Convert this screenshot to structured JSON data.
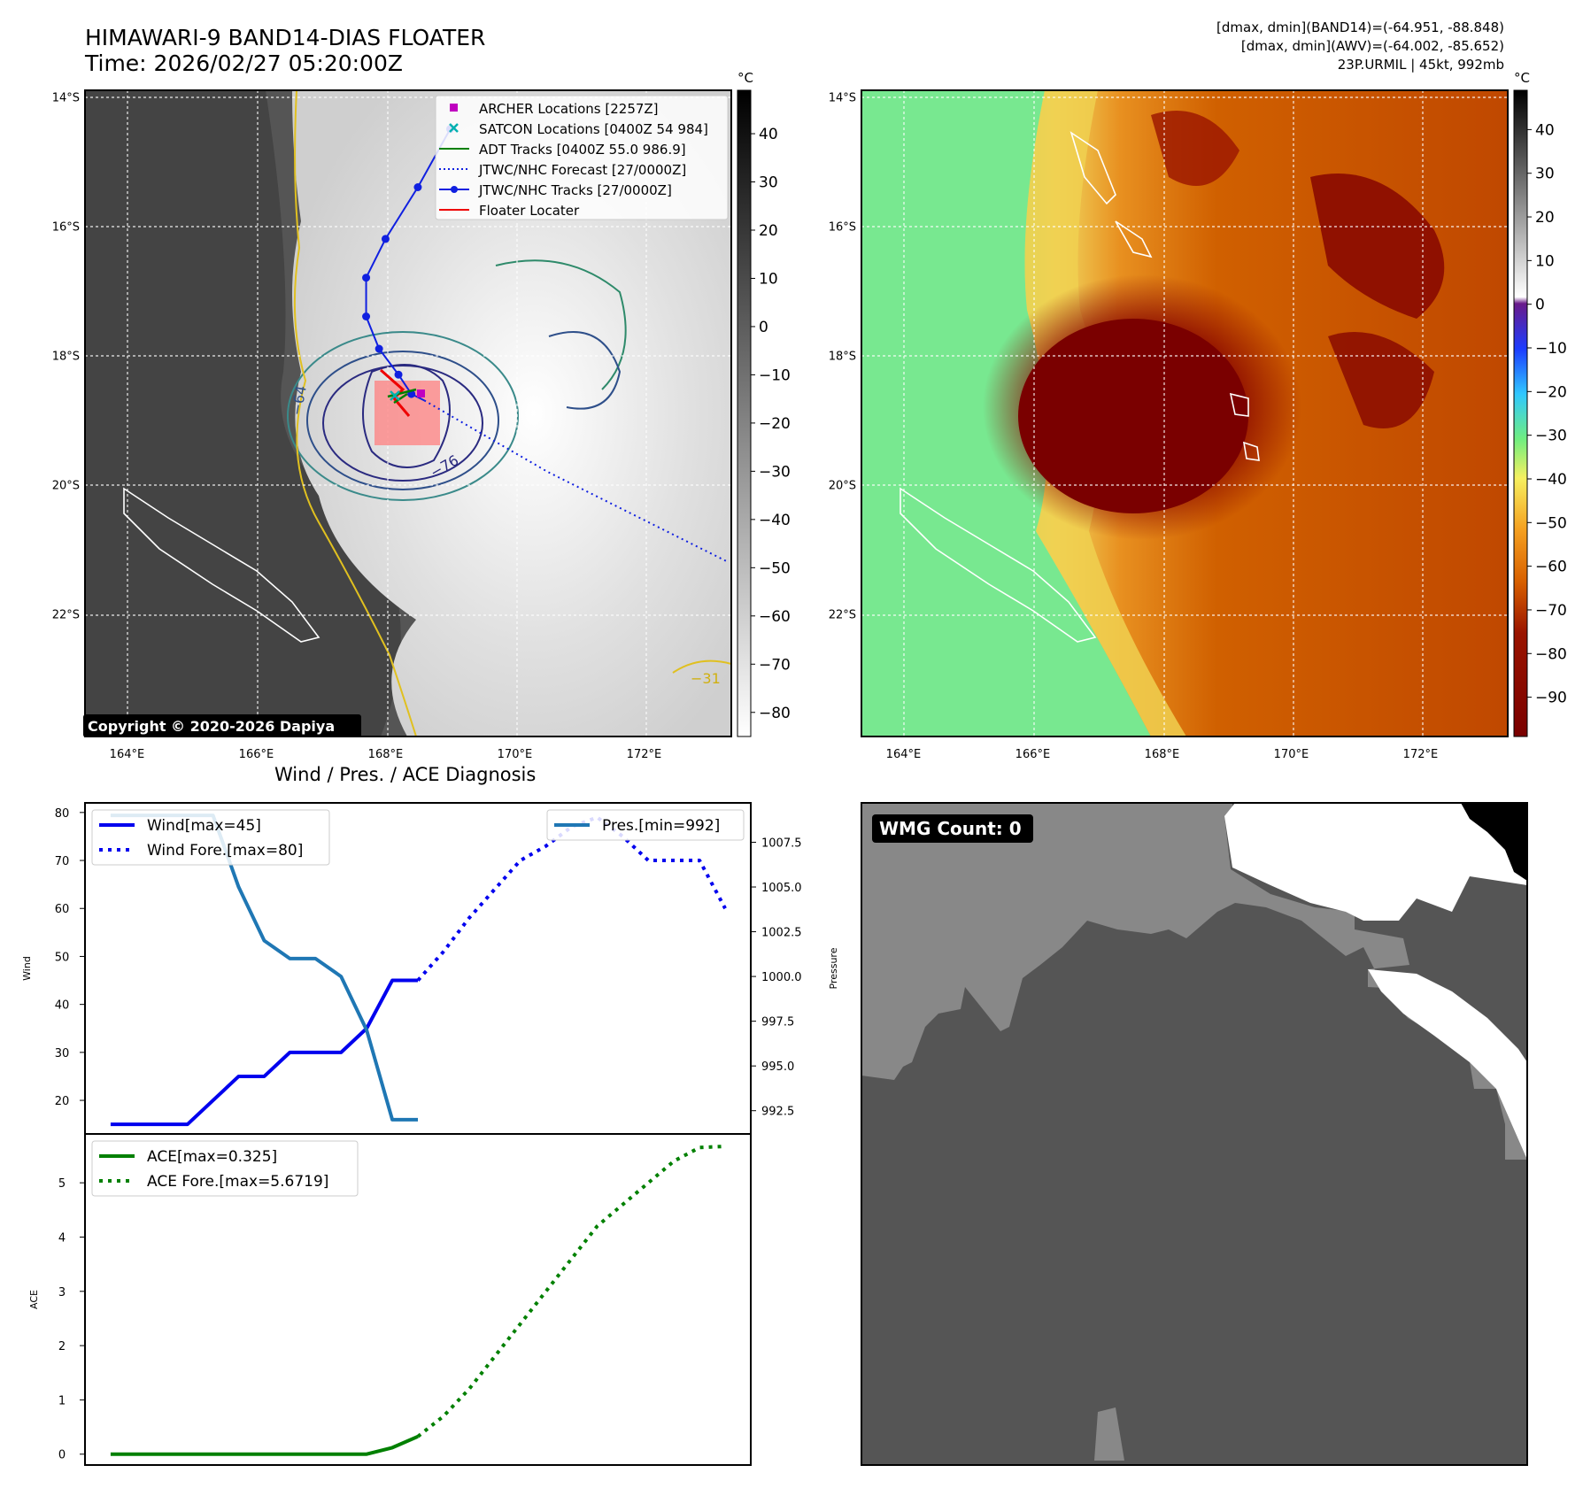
{
  "header": {
    "title_line1": "HIMAWARI-9 BAND14-DIAS FLOATER",
    "title_line2": "Time: 2026/02/27 05:20:00Z",
    "stats_line1": "[dmax, dmin](BAND14)=(-64.951, -88.848)",
    "stats_line2": "[dmax, dmin](AWV)=(-64.002, -85.652)",
    "stats_line3": "23P.URMIL | 45kt, 992mb"
  },
  "copyright": "Copyright © 2020-2026 Dapiya",
  "diag_title": "Wind / Pres. / ACE Diagnosis",
  "wmg_label": "WMG Count: 0",
  "colors": {
    "wind": "#0000ee",
    "pressure": "#1f77b4",
    "ace": "#008000",
    "track": "#1020e0",
    "floater": "#ee0000",
    "archer": "#c000c0",
    "satcon": "#00b0b0"
  },
  "chart_data": [
    {
      "id": "ir_map",
      "type": "heatmap",
      "title": "HIMAWARI-9 BAND14-DIAS FLOATER",
      "colorbar_unit": "°C",
      "colorbar_ticks": [
        40,
        30,
        20,
        10,
        0,
        -10,
        -20,
        -30,
        -40,
        -50,
        -60,
        -70,
        -80
      ],
      "colorbar_range": [
        -85,
        49
      ],
      "lon_ticks": [
        "164°E",
        "166°E",
        "168°E",
        "170°E",
        "172°E"
      ],
      "lat_ticks": [
        "14°S",
        "16°S",
        "18°S",
        "20°S",
        "22°S"
      ],
      "lon_range": [
        163.35,
        173.35
      ],
      "lat_range": [
        -23.9,
        -13.9
      ],
      "contour_labels": [
        "−64",
        "−76",
        "−31"
      ],
      "legend": [
        {
          "label": "ARCHER Locations [2257Z]",
          "kind": "square",
          "color": "#c000c0"
        },
        {
          "label": "SATCON Locations [0400Z 54 984]",
          "kind": "x",
          "color": "#00b0b0"
        },
        {
          "label": "ADT Tracks [0400Z 55.0 986.9]",
          "kind": "line",
          "color": "#008000"
        },
        {
          "label": "JTWC/NHC Forecast [27/0000Z]",
          "kind": "dotted",
          "color": "#1020e0"
        },
        {
          "label": "JTWC/NHC Tracks [27/0000Z]",
          "kind": "marker-line",
          "color": "#1020e0"
        },
        {
          "label": "Floater Locater",
          "kind": "line",
          "color": "#ee0000"
        }
      ],
      "jtwc_track": [
        [
          168.6,
          -18.7
        ],
        [
          168.4,
          -18.6
        ],
        [
          168.2,
          -18.3
        ],
        [
          167.9,
          -17.9
        ],
        [
          167.7,
          -17.4
        ],
        [
          167.7,
          -16.8
        ],
        [
          168.0,
          -16.2
        ],
        [
          168.5,
          -15.4
        ],
        [
          169.0,
          -14.5
        ]
      ],
      "jtwc_forecast": [
        [
          168.6,
          -18.7
        ],
        [
          170.5,
          -19.8
        ],
        [
          173.3,
          -21.2
        ]
      ],
      "floater_center": [
        168.3,
        -18.65
      ]
    },
    {
      "id": "awv_map",
      "type": "heatmap",
      "colorbar_unit": "°C",
      "colorbar_ticks": [
        40,
        30,
        20,
        10,
        0,
        -10,
        -20,
        -30,
        -40,
        -50,
        -60,
        -70,
        -80,
        -90
      ],
      "colorbar_range": [
        -99,
        49
      ],
      "lon_ticks": [
        "164°E",
        "166°E",
        "168°E",
        "170°E",
        "172°E"
      ],
      "lat_ticks": [
        "14°S",
        "16°S",
        "18°S",
        "20°S",
        "22°S"
      ]
    },
    {
      "id": "wind_pressure",
      "type": "line",
      "title": "Wind / Pres. / ACE Diagnosis",
      "ylabel": "Wind",
      "ylabel_right": "Pressure",
      "x": [
        0,
        1,
        2,
        3,
        4,
        5,
        6,
        7,
        8,
        9,
        10,
        11,
        12,
        13,
        14,
        15,
        16,
        17,
        18,
        19,
        20,
        21,
        22,
        23,
        24
      ],
      "xlim": [
        -1,
        25
      ],
      "ylim": [
        13,
        82
      ],
      "yticks": [
        20,
        30,
        40,
        50,
        60,
        70,
        80
      ],
      "ylim_right": [
        991.2,
        1009.7
      ],
      "yticks_right": [
        992.5,
        995.0,
        997.5,
        1000.0,
        1002.5,
        1005.0,
        1007.5
      ],
      "series": [
        {
          "name": "Wind[max=45]",
          "axis": "left",
          "style": "solid",
          "color": "#0000ee",
          "x": [
            0,
            1,
            2,
            3,
            4,
            5,
            6,
            7,
            8,
            9,
            10,
            11,
            12
          ],
          "values": [
            15,
            15,
            15,
            15,
            20,
            25,
            25,
            30,
            30,
            30,
            35,
            45,
            45
          ]
        },
        {
          "name": "Wind Fore.[max=80]",
          "axis": "left",
          "style": "dotted",
          "color": "#0000ee",
          "x": [
            12,
            13,
            14,
            15,
            16,
            17,
            18,
            19,
            20,
            21,
            22,
            23,
            24
          ],
          "values": [
            45,
            51,
            58,
            64,
            70,
            73,
            77,
            79,
            75,
            70,
            70,
            70,
            60
          ]
        },
        {
          "name": "Pres.[min=992]",
          "axis": "right",
          "style": "solid",
          "color": "#1f77b4",
          "x": [
            0,
            1,
            2,
            3,
            4,
            5,
            6,
            7,
            8,
            9,
            10,
            11,
            12
          ],
          "values": [
            1009,
            1009,
            1009,
            1009,
            1009,
            1005,
            1002,
            1001,
            1001,
            1000,
            997,
            992,
            992
          ]
        }
      ]
    },
    {
      "id": "ace",
      "type": "line",
      "ylabel": "ACE",
      "x": [
        0,
        1,
        2,
        3,
        4,
        5,
        6,
        7,
        8,
        9,
        10,
        11,
        12,
        13,
        14,
        15,
        16,
        17,
        18,
        19,
        20,
        21,
        22,
        23,
        24
      ],
      "xlim": [
        -1,
        25
      ],
      "ylim": [
        -0.2,
        5.9
      ],
      "yticks": [
        0,
        1,
        2,
        3,
        4,
        5
      ],
      "series": [
        {
          "name": "ACE[max=0.325]",
          "style": "solid",
          "color": "#008000",
          "x": [
            0,
            1,
            2,
            3,
            4,
            5,
            6,
            7,
            8,
            9,
            10,
            11,
            12
          ],
          "values": [
            0,
            0,
            0,
            0,
            0,
            0,
            0,
            0,
            0,
            0,
            0,
            0.12,
            0.325
          ]
        },
        {
          "name": "ACE Fore.[max=5.6719]",
          "style": "dotted",
          "color": "#008000",
          "x": [
            12,
            13,
            14,
            15,
            16,
            17,
            18,
            19,
            20,
            21,
            22,
            23,
            24
          ],
          "values": [
            0.325,
            0.7,
            1.2,
            1.8,
            2.4,
            3.0,
            3.6,
            4.2,
            4.6,
            5.0,
            5.4,
            5.65,
            5.6719
          ]
        }
      ]
    }
  ]
}
